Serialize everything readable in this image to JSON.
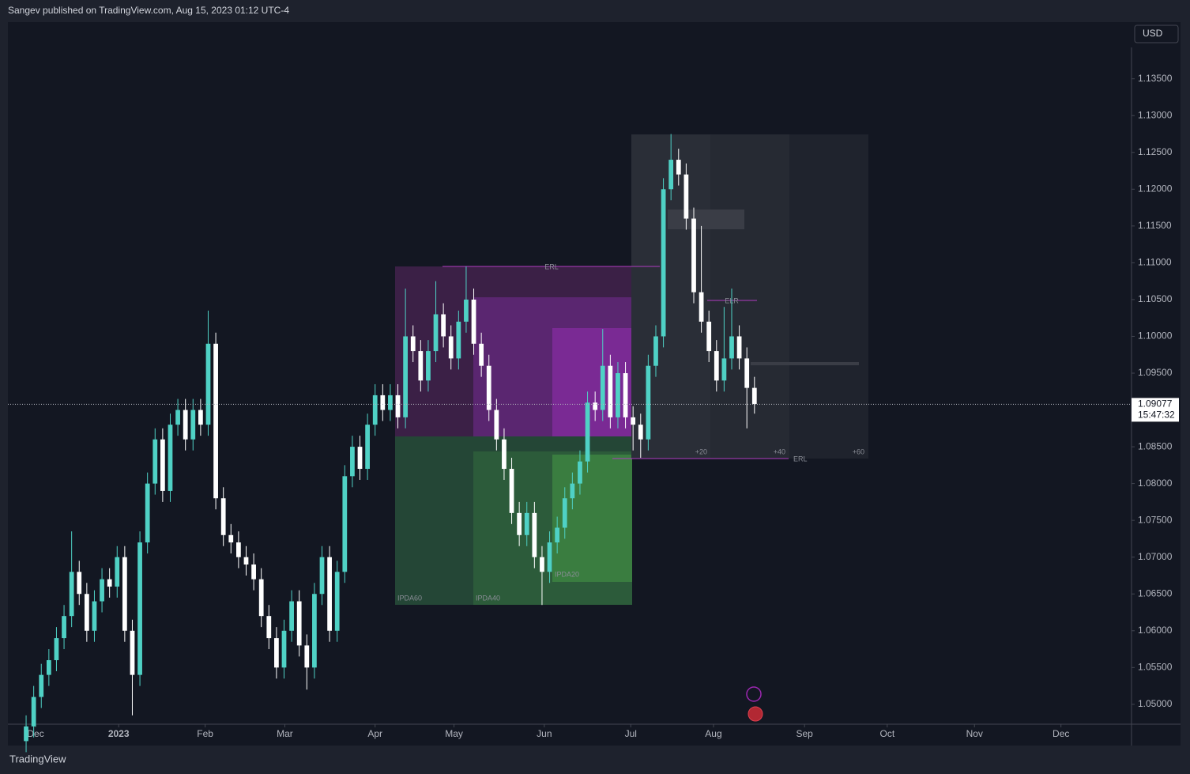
{
  "header": {
    "publisher": "Sangev published on TradingView.com, Aug 15, 2023 01:12 UTC-4"
  },
  "footer": {
    "brand": "TradingView"
  },
  "chart_data": {
    "type": "candlestick",
    "currency": "USD",
    "up_color": "#4fd1c5",
    "down_color": "#ffffff",
    "xlim": [
      -2.4,
      145.7
    ],
    "xticks": [
      {
        "value": 1.25,
        "label": "Dec"
      },
      {
        "value": 12.2,
        "label": "2023"
      },
      {
        "value": 23.6,
        "label": "Feb"
      },
      {
        "value": 34.1,
        "label": "Mar"
      },
      {
        "value": 46,
        "label": "Apr"
      },
      {
        "value": 56.4,
        "label": "May"
      },
      {
        "value": 68.3,
        "label": "Jun"
      },
      {
        "value": 79.7,
        "label": "Jul"
      },
      {
        "value": 90.6,
        "label": "Aug"
      },
      {
        "value": 102.6,
        "label": "Sep"
      },
      {
        "value": 113.5,
        "label": "Oct"
      },
      {
        "value": 125,
        "label": "Nov"
      },
      {
        "value": 136.4,
        "label": "Dec"
      }
    ],
    "ylim": [
      1.0473,
      1.1427
    ],
    "yticks": [
      {
        "value": 1.05,
        "label": "1.05000"
      },
      {
        "value": 1.055,
        "label": "1.05500"
      },
      {
        "value": 1.06,
        "label": "1.06000"
      },
      {
        "value": 1.065,
        "label": "1.06500"
      },
      {
        "value": 1.07,
        "label": "1.07000"
      },
      {
        "value": 1.075,
        "label": "1.07500"
      },
      {
        "value": 1.08,
        "label": "1.08000"
      },
      {
        "value": 1.085,
        "label": "1.08500"
      },
      {
        "value": 1.09,
        "label": "1.09000"
      },
      {
        "value": 1.095,
        "label": "1.09500"
      },
      {
        "value": 1.1,
        "label": "1.10000"
      },
      {
        "value": 1.105,
        "label": "1.10500"
      },
      {
        "value": 1.11,
        "label": "1.11000"
      },
      {
        "value": 1.115,
        "label": "1.11500"
      },
      {
        "value": 1.12,
        "label": "1.12000"
      },
      {
        "value": 1.125,
        "label": "1.12500"
      },
      {
        "value": 1.13,
        "label": "1.13000"
      },
      {
        "value": 1.135,
        "label": "1.13500"
      }
    ],
    "last_price": 1.09077,
    "countdown": "15:47:32",
    "annotations": {
      "erl_top": "ERL",
      "elr": "ELR",
      "erl_bottom": "ERL",
      "plus20": "+20",
      "plus40": "+40",
      "plus60": "+60",
      "ipda60": "IPDA60",
      "ipda40": "IPDA40",
      "ipda20": "IPDA20"
    },
    "open": [
      1.045,
      1.047,
      1.051,
      1.054,
      1.056,
      1.059,
      1.062,
      1.068,
      1.065,
      1.06,
      1.064,
      1.067,
      1.066,
      1.07,
      1.06,
      1.054,
      1.072,
      1.08,
      1.086,
      1.079,
      1.088,
      1.09,
      1.086,
      1.09,
      1.088,
      1.099,
      1.078,
      1.073,
      1.072,
      1.07,
      1.069,
      1.067,
      1.062,
      1.059,
      1.055,
      1.06,
      1.064,
      1.058,
      1.055,
      1.065,
      1.07,
      1.06,
      1.068,
      1.081,
      1.085,
      1.082,
      1.088,
      1.092,
      1.09,
      1.092,
      1.089,
      1.1,
      1.098,
      1.094,
      1.098,
      1.103,
      1.1,
      1.097,
      1.102,
      1.105,
      1.099,
      1.096,
      1.09,
      1.086,
      1.082,
      1.076,
      1.073,
      1.076,
      1.07,
      1.068,
      1.072,
      1.074,
      1.078,
      1.08,
      1.083,
      1.091,
      1.09,
      1.096,
      1.089,
      1.095,
      1.089,
      1.088,
      1.086,
      1.096,
      1.1,
      1.12,
      1.124,
      1.122,
      1.116,
      1.106,
      1.102,
      1.098,
      1.094,
      1.097,
      1.1,
      1.097,
      1.093
    ],
    "high": [
      1.0485,
      1.0525,
      1.0555,
      1.0575,
      1.0605,
      1.0635,
      1.0735,
      1.0695,
      1.0665,
      1.0655,
      1.0685,
      1.0685,
      1.0715,
      1.0715,
      1.0615,
      1.0735,
      1.0815,
      1.0875,
      1.0875,
      1.0895,
      1.0915,
      1.0915,
      1.0915,
      1.0915,
      1.1035,
      1.1005,
      1.0795,
      1.0745,
      1.0735,
      1.0715,
      1.0705,
      1.0685,
      1.0635,
      1.0605,
      1.0615,
      1.0655,
      1.0655,
      1.0595,
      1.0665,
      1.0715,
      1.0715,
      1.0695,
      1.0825,
      1.0865,
      1.0865,
      1.0895,
      1.0935,
      1.0935,
      1.0935,
      1.0935,
      1.1065,
      1.1015,
      1.0995,
      1.0995,
      1.1075,
      1.1045,
      1.1015,
      1.1035,
      1.1095,
      1.1065,
      1.1005,
      1.0975,
      1.0915,
      1.0875,
      1.0835,
      1.0775,
      1.0775,
      1.0775,
      1.0715,
      1.0735,
      1.0755,
      1.0795,
      1.0815,
      1.0845,
      1.0925,
      1.0925,
      1.101,
      1.0975,
      1.0965,
      1.0965,
      1.0905,
      1.0895,
      1.0975,
      1.1015,
      1.1215,
      1.1275,
      1.1255,
      1.1235,
      1.1175,
      1.115,
      1.1035,
      1.0995,
      1.104,
      1.1065,
      1.1015,
      1.0985,
      1.0945
    ],
    "low": [
      1.0435,
      1.0455,
      1.0495,
      1.0525,
      1.0545,
      1.0575,
      1.0605,
      1.0635,
      1.0585,
      1.0585,
      1.0625,
      1.0645,
      1.0645,
      1.0585,
      1.0485,
      1.0525,
      1.0705,
      1.0785,
      1.0775,
      1.0775,
      1.0865,
      1.0845,
      1.0845,
      1.0865,
      1.0865,
      1.0765,
      1.0715,
      1.0705,
      1.0685,
      1.0675,
      1.0655,
      1.0605,
      1.0575,
      1.0535,
      1.0535,
      1.0585,
      1.0565,
      1.052,
      1.0535,
      1.0635,
      1.0585,
      1.0585,
      1.0665,
      1.0795,
      1.0805,
      1.0805,
      1.0865,
      1.0885,
      1.0885,
      1.0875,
      1.0875,
      1.0965,
      1.0925,
      1.0925,
      1.0965,
      1.0985,
      1.0955,
      1.0955,
      1.1005,
      1.0975,
      1.0945,
      1.0885,
      1.0845,
      1.0805,
      1.0745,
      1.0715,
      1.0715,
      1.0685,
      1.0635,
      1.0665,
      1.0705,
      1.0725,
      1.0765,
      1.0785,
      1.0815,
      1.0885,
      1.0885,
      1.0875,
      1.0875,
      1.0875,
      1.0845,
      1.0835,
      1.0845,
      1.0945,
      1.0985,
      1.1185,
      1.1205,
      1.1145,
      1.1045,
      1.1005,
      1.0965,
      1.0925,
      1.0925,
      1.0955,
      1.0955,
      1.0875,
      1.0895
    ],
    "close": [
      1.047,
      1.051,
      1.054,
      1.056,
      1.059,
      1.062,
      1.068,
      1.065,
      1.06,
      1.064,
      1.067,
      1.066,
      1.07,
      1.06,
      1.054,
      1.072,
      1.08,
      1.086,
      1.079,
      1.088,
      1.09,
      1.086,
      1.09,
      1.088,
      1.099,
      1.078,
      1.073,
      1.072,
      1.07,
      1.069,
      1.067,
      1.062,
      1.059,
      1.055,
      1.06,
      1.064,
      1.058,
      1.055,
      1.065,
      1.07,
      1.06,
      1.068,
      1.081,
      1.085,
      1.082,
      1.088,
      1.092,
      1.09,
      1.092,
      1.089,
      1.1,
      1.098,
      1.094,
      1.098,
      1.103,
      1.1,
      1.097,
      1.102,
      1.105,
      1.099,
      1.096,
      1.09,
      1.086,
      1.082,
      1.076,
      1.073,
      1.076,
      1.07,
      1.068,
      1.072,
      1.074,
      1.078,
      1.08,
      1.083,
      1.091,
      1.09,
      1.096,
      1.089,
      1.095,
      1.089,
      1.088,
      1.086,
      1.096,
      1.1,
      1.12,
      1.124,
      1.122,
      1.116,
      1.106,
      1.102,
      1.098,
      1.094,
      1.097,
      1.1,
      1.097,
      1.093,
      1.0908
    ]
  }
}
